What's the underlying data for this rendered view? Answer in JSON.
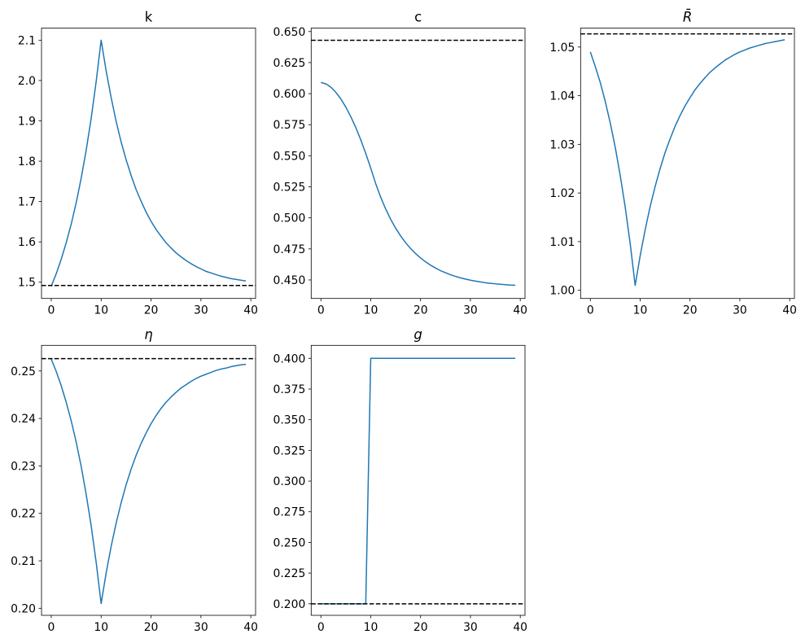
{
  "figure": {
    "line_color": "#1f77b4",
    "steady_state_color": "#000000",
    "steady_state_style": "dashed"
  },
  "chart_data": [
    {
      "type": "line",
      "title": "k",
      "math_title": false,
      "x": [
        0,
        1,
        2,
        3,
        4,
        5,
        6,
        7,
        8,
        9,
        10,
        11,
        12,
        13,
        14,
        15,
        16,
        17,
        18,
        19,
        20,
        21,
        22,
        23,
        24,
        25,
        26,
        27,
        28,
        29,
        30,
        31,
        32,
        33,
        34,
        35,
        36,
        37,
        38,
        39
      ],
      "values": [
        1.49,
        1.521,
        1.557,
        1.598,
        1.644,
        1.697,
        1.758,
        1.827,
        1.906,
        1.997,
        2.1,
        2.024,
        1.958,
        1.899,
        1.848,
        1.804,
        1.765,
        1.73,
        1.701,
        1.674,
        1.651,
        1.631,
        1.614,
        1.598,
        1.585,
        1.573,
        1.563,
        1.554,
        1.546,
        1.539,
        1.533,
        1.527,
        1.523,
        1.519,
        1.515,
        1.512,
        1.509,
        1.507,
        1.505,
        1.503
      ],
      "steady_state": 1.492,
      "xlim": [
        -1.95,
        40.95
      ],
      "ylim": [
        1.4597,
        2.13
      ],
      "xticks": [
        0,
        10,
        20,
        30,
        40
      ],
      "xtick_labels": [
        "0",
        "10",
        "20",
        "30",
        "40"
      ],
      "yticks": [
        1.5,
        1.6,
        1.7,
        1.8,
        1.9,
        2.0,
        2.1
      ],
      "ytick_labels": [
        "1.5",
        "1.6",
        "1.7",
        "1.8",
        "1.9",
        "2.0",
        "2.1"
      ],
      "grid": false
    },
    {
      "type": "line",
      "title": "c",
      "math_title": false,
      "x": [
        0,
        1,
        2,
        3,
        4,
        5,
        6,
        7,
        8,
        9,
        10,
        11,
        12,
        13,
        14,
        15,
        16,
        17,
        18,
        19,
        20,
        21,
        22,
        23,
        24,
        25,
        26,
        27,
        28,
        29,
        30,
        31,
        32,
        33,
        34,
        35,
        36,
        37,
        38,
        39
      ],
      "values": [
        0.609,
        0.6079,
        0.6052,
        0.6011,
        0.5957,
        0.5892,
        0.5815,
        0.5727,
        0.5628,
        0.5519,
        0.54,
        0.5275,
        0.5166,
        0.5071,
        0.4988,
        0.4917,
        0.4854,
        0.48,
        0.4753,
        0.4712,
        0.4677,
        0.4646,
        0.4619,
        0.4596,
        0.4575,
        0.4558,
        0.4542,
        0.4529,
        0.4517,
        0.4507,
        0.4498,
        0.4491,
        0.4484,
        0.4478,
        0.4473,
        0.4469,
        0.4465,
        0.4462,
        0.4459,
        0.4457
      ],
      "steady_state": 0.643,
      "xlim": [
        -1.95,
        40.95
      ],
      "ylim": [
        0.4351,
        0.6528
      ],
      "xticks": [
        0,
        10,
        20,
        30,
        40
      ],
      "xtick_labels": [
        "0",
        "10",
        "20",
        "30",
        "40"
      ],
      "yticks": [
        0.45,
        0.475,
        0.5,
        0.525,
        0.55,
        0.575,
        0.6,
        0.625,
        0.65
      ],
      "ytick_labels": [
        "0.450",
        "0.475",
        "0.500",
        "0.525",
        "0.550",
        "0.575",
        "0.600",
        "0.625",
        "0.650"
      ],
      "grid": false
    },
    {
      "type": "line",
      "title": "R̄",
      "math_title": true,
      "x": [
        0,
        1,
        2,
        3,
        4,
        5,
        6,
        7,
        8,
        9,
        10,
        11,
        12,
        13,
        14,
        15,
        16,
        17,
        18,
        19,
        20,
        21,
        22,
        23,
        24,
        25,
        26,
        27,
        28,
        29,
        30,
        31,
        32,
        33,
        34,
        35,
        36,
        37,
        38,
        39
      ],
      "values": [
        1.049,
        1.046,
        1.0427,
        1.0388,
        1.0344,
        1.0294,
        1.0236,
        1.0171,
        1.0096,
        1.001,
        1.0071,
        1.0124,
        1.0172,
        1.0213,
        1.025,
        1.0283,
        1.0311,
        1.0337,
        1.0359,
        1.0379,
        1.0396,
        1.0412,
        1.0425,
        1.0437,
        1.0448,
        1.0457,
        1.0465,
        1.0473,
        1.0479,
        1.0485,
        1.049,
        1.0494,
        1.0498,
        1.0501,
        1.0504,
        1.0507,
        1.0509,
        1.0511,
        1.0513,
        1.0515
      ],
      "steady_state": 1.0527,
      "xlim": [
        -1.95,
        40.95
      ],
      "ylim": [
        0.99832,
        1.0539
      ],
      "xticks": [
        0,
        10,
        20,
        30,
        40
      ],
      "xtick_labels": [
        "0",
        "10",
        "20",
        "30",
        "40"
      ],
      "yticks": [
        1.0,
        1.01,
        1.02,
        1.03,
        1.04,
        1.05
      ],
      "ytick_labels": [
        "1.00",
        "1.01",
        "1.02",
        "1.03",
        "1.04",
        "1.05"
      ],
      "grid": false
    },
    {
      "type": "line",
      "title": "η",
      "math_title": true,
      "x": [
        0,
        1,
        2,
        3,
        4,
        5,
        6,
        7,
        8,
        9,
        10,
        11,
        12,
        13,
        14,
        15,
        16,
        17,
        18,
        19,
        20,
        21,
        22,
        23,
        24,
        25,
        26,
        27,
        28,
        29,
        30,
        31,
        32,
        33,
        34,
        35,
        36,
        37,
        38,
        39
      ],
      "values": [
        0.2525,
        0.2499,
        0.2469,
        0.2434,
        0.2395,
        0.235,
        0.2299,
        0.224,
        0.2174,
        0.2097,
        0.201,
        0.2074,
        0.213,
        0.2179,
        0.2222,
        0.226,
        0.2293,
        0.2322,
        0.2347,
        0.2369,
        0.2389,
        0.2406,
        0.2421,
        0.2434,
        0.2445,
        0.2455,
        0.2464,
        0.2471,
        0.2478,
        0.2484,
        0.2489,
        0.2493,
        0.2497,
        0.2501,
        0.2504,
        0.2506,
        0.2509,
        0.2511,
        0.2513,
        0.2514
      ],
      "steady_state": 0.2526,
      "xlim": [
        -1.95,
        40.95
      ],
      "ylim": [
        0.19851,
        0.2554
      ],
      "xticks": [
        0,
        10,
        20,
        30,
        40
      ],
      "xtick_labels": [
        "0",
        "10",
        "20",
        "30",
        "40"
      ],
      "yticks": [
        0.2,
        0.21,
        0.22,
        0.23,
        0.24,
        0.25
      ],
      "ytick_labels": [
        "0.20",
        "0.21",
        "0.22",
        "0.23",
        "0.24",
        "0.25"
      ],
      "grid": false
    },
    {
      "type": "line",
      "title": "g",
      "math_title": true,
      "x": [
        0,
        1,
        2,
        3,
        4,
        5,
        6,
        7,
        8,
        9,
        10,
        11,
        12,
        13,
        14,
        15,
        16,
        17,
        18,
        19,
        20,
        21,
        22,
        23,
        24,
        25,
        26,
        27,
        28,
        29,
        30,
        31,
        32,
        33,
        34,
        35,
        36,
        37,
        38,
        39
      ],
      "values": [
        0.2,
        0.2,
        0.2,
        0.2,
        0.2,
        0.2,
        0.2,
        0.2,
        0.2,
        0.2,
        0.4,
        0.4,
        0.4,
        0.4,
        0.4,
        0.4,
        0.4,
        0.4,
        0.4,
        0.4,
        0.4,
        0.4,
        0.4,
        0.4,
        0.4,
        0.4,
        0.4,
        0.4,
        0.4,
        0.4,
        0.4,
        0.4,
        0.4,
        0.4,
        0.4,
        0.4,
        0.4,
        0.4,
        0.4,
        0.4
      ],
      "steady_state": 0.2,
      "xlim": [
        -1.95,
        40.95
      ],
      "ylim": [
        0.1906,
        0.4106
      ],
      "xticks": [
        0,
        10,
        20,
        30,
        40
      ],
      "xtick_labels": [
        "0",
        "10",
        "20",
        "30",
        "40"
      ],
      "yticks": [
        0.2,
        0.225,
        0.25,
        0.275,
        0.3,
        0.325,
        0.35,
        0.375,
        0.4
      ],
      "ytick_labels": [
        "0.200",
        "0.225",
        "0.250",
        "0.275",
        "0.300",
        "0.325",
        "0.350",
        "0.375",
        "0.400"
      ],
      "grid": false
    }
  ]
}
